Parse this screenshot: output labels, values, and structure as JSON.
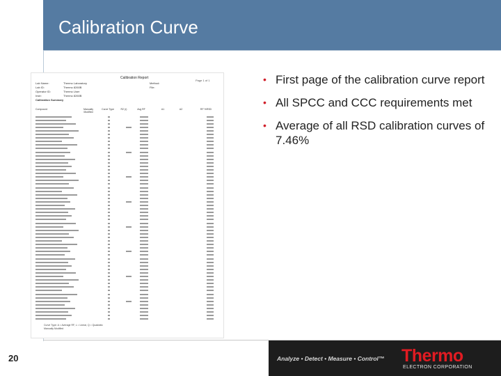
{
  "slide": {
    "title": "Calibration Curve",
    "page_number": "20"
  },
  "report": {
    "title": "Calibration Report",
    "page": "Page 1 of 1",
    "meta_labels": [
      "Lab Name:",
      "Lab ID:",
      "Operator ID:",
      "Instr:"
    ],
    "meta_values": [
      "Thermo Laboratory",
      "Thermo 8260B",
      "Thermo User",
      "Thermo 8260B"
    ],
    "meta_right_labels": [
      "Method:",
      "",
      "File:"
    ],
    "summary_label": "Calibration Summary",
    "column_headers": [
      "Compound",
      "Manually Modified",
      "Curve Type",
      "R2 (r)",
      "Avg RF",
      "A1",
      "A2",
      "RF %RSD"
    ],
    "footer_lines": [
      "Curve Type: A = Average RF, L = Linear, Q = Quadratic",
      "Manually Modified"
    ]
  },
  "bullets": [
    "First page of the calibration curve report",
    "All SPCC and CCC requirements met",
    "Average of all RSD calibration curves of 7.46%"
  ],
  "footer": {
    "tagline": "Analyze • Detect • Measure • Control™",
    "brand": "Thermo",
    "brand_sub": "ELECTRON CORPORATION"
  },
  "colors": {
    "title_bar": "#557ba2",
    "bullet": "#d11f2a",
    "brand": "#e11b22",
    "footer_band": "#1d1d1d"
  }
}
